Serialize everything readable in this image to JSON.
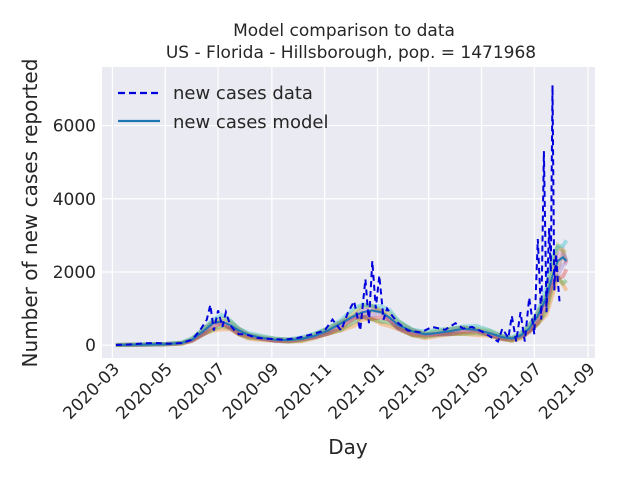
{
  "chart_data": {
    "type": "line",
    "title": "Model comparison to data",
    "subtitle": "US - Florida - Hillsborough, pop. = 1471968",
    "xlabel": "Day",
    "ylabel": "Number of new cases reported",
    "x_ticks": [
      "2020-03",
      "2020-05",
      "2020-07",
      "2020-09",
      "2020-11",
      "2021-01",
      "2021-03",
      "2021-05",
      "2021-07",
      "2021-09"
    ],
    "y_ticks": [
      0,
      2000,
      4000,
      6000
    ],
    "xlim": [
      "2020-02-18",
      "2021-09-09"
    ],
    "ylim": [
      -350,
      7600
    ],
    "grid": true,
    "legend_position": "top-left",
    "colors": {
      "background": "#eaeaf2",
      "data_line": "#0000dd",
      "model_line": "#1f77b4",
      "ensemble": [
        "#ff7f0e",
        "#2ca02c",
        "#d62728",
        "#9467bd",
        "#8c564b",
        "#e377c2",
        "#7f7f7f",
        "#bcbd22",
        "#17becf"
      ]
    },
    "series": [
      {
        "name": "new cases data",
        "style": "dashed",
        "x": [
          "2020-03-05",
          "2020-03-20",
          "2020-04-05",
          "2020-04-20",
          "2020-05-05",
          "2020-05-20",
          "2020-06-01",
          "2020-06-10",
          "2020-06-18",
          "2020-06-22",
          "2020-06-26",
          "2020-07-01",
          "2020-07-06",
          "2020-07-10",
          "2020-07-15",
          "2020-07-20",
          "2020-07-25",
          "2020-08-01",
          "2020-08-15",
          "2020-09-01",
          "2020-09-15",
          "2020-10-01",
          "2020-10-15",
          "2020-11-01",
          "2020-11-10",
          "2020-11-20",
          "2020-11-28",
          "2020-12-05",
          "2020-12-12",
          "2020-12-18",
          "2020-12-22",
          "2020-12-26",
          "2020-12-30",
          "2021-01-03",
          "2021-01-08",
          "2021-01-12",
          "2021-01-18",
          "2021-01-25",
          "2021-02-05",
          "2021-02-20",
          "2021-03-05",
          "2021-03-20",
          "2021-04-01",
          "2021-04-10",
          "2021-04-20",
          "2021-05-01",
          "2021-05-10",
          "2021-05-20",
          "2021-05-25",
          "2021-06-01",
          "2021-06-05",
          "2021-06-10",
          "2021-06-15",
          "2021-06-20",
          "2021-06-25",
          "2021-07-01",
          "2021-07-05",
          "2021-07-09",
          "2021-07-12",
          "2021-07-15",
          "2021-07-18",
          "2021-07-20",
          "2021-07-22",
          "2021-07-24",
          "2021-07-26",
          "2021-07-28",
          "2021-07-30"
        ],
        "y": [
          5,
          20,
          50,
          60,
          40,
          60,
          150,
          400,
          700,
          1100,
          400,
          950,
          500,
          900,
          550,
          400,
          300,
          300,
          200,
          170,
          150,
          200,
          280,
          400,
          700,
          400,
          900,
          1200,
          400,
          1800,
          600,
          2300,
          1000,
          1900,
          700,
          1000,
          800,
          600,
          400,
          350,
          500,
          420,
          600,
          450,
          500,
          380,
          250,
          100,
          450,
          200,
          800,
          100,
          900,
          100,
          1300,
          300,
          2900,
          700,
          5300,
          900,
          3200,
          2000,
          7100,
          1500,
          2500,
          1800,
          1200
        ]
      },
      {
        "name": "new cases model",
        "style": "solid",
        "x": [
          "2020-03-05",
          "2020-04-01",
          "2020-05-01",
          "2020-05-20",
          "2020-06-01",
          "2020-06-15",
          "2020-06-25",
          "2020-07-05",
          "2020-07-15",
          "2020-07-25",
          "2020-08-05",
          "2020-08-20",
          "2020-09-05",
          "2020-09-20",
          "2020-10-05",
          "2020-10-20",
          "2020-11-05",
          "2020-11-20",
          "2020-12-05",
          "2020-12-15",
          "2020-12-25",
          "2021-01-05",
          "2021-01-15",
          "2021-01-25",
          "2021-02-10",
          "2021-02-25",
          "2021-03-10",
          "2021-03-25",
          "2021-04-10",
          "2021-04-25",
          "2021-05-10",
          "2021-05-25",
          "2021-06-05",
          "2021-06-15",
          "2021-06-25",
          "2021-07-05",
          "2021-07-15",
          "2021-07-22",
          "2021-07-28",
          "2021-08-03",
          "2021-08-07"
        ],
        "y": [
          5,
          15,
          30,
          60,
          150,
          400,
          600,
          650,
          550,
          400,
          280,
          200,
          150,
          140,
          170,
          250,
          400,
          600,
          800,
          900,
          950,
          900,
          750,
          550,
          380,
          300,
          330,
          380,
          450,
          420,
          330,
          220,
          180,
          260,
          450,
          800,
          1300,
          1900,
          2300,
          2400,
          2300
        ]
      }
    ]
  }
}
